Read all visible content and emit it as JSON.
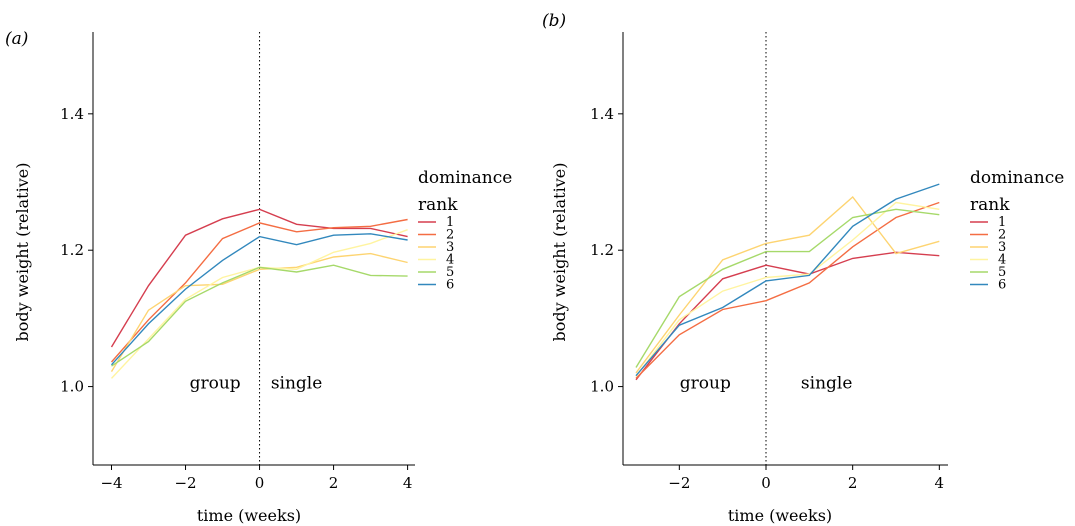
{
  "chart_data": [
    {
      "type": "line",
      "panel_label": "(a)",
      "xlabel": "time (weeks)",
      "ylabel": "body weight (relative)",
      "xlim": [
        -4.5,
        4.2
      ],
      "ylim": [
        0.885,
        1.52
      ],
      "xticks": [
        -4,
        -2,
        0,
        2,
        4
      ],
      "xtick_labels": [
        "−4",
        "−2",
        "0",
        "2",
        "4"
      ],
      "yticks": [
        1.0,
        1.2,
        1.4
      ],
      "ytick_labels": [
        "1.0",
        "1.2",
        "1.4"
      ],
      "divider_x": 0,
      "annotations": [
        {
          "text": "group",
          "x": -1.2,
          "y": 0.997
        },
        {
          "text": "single",
          "x": 1.0,
          "y": 0.997
        }
      ],
      "legend": {
        "title_line1": "dominance",
        "title_line2": "rank",
        "position": "right"
      },
      "x": [
        -4,
        -3,
        -2,
        -1,
        0,
        1,
        2,
        3,
        4
      ],
      "series": [
        {
          "name": "1",
          "color": "#d53e4f",
          "values": [
            1.058,
            1.148,
            1.222,
            1.246,
            1.26,
            1.238,
            1.232,
            1.232,
            1.22
          ]
        },
        {
          "name": "2",
          "color": "#f46d43",
          "values": [
            1.036,
            1.098,
            1.152,
            1.217,
            1.24,
            1.227,
            1.233,
            1.235,
            1.245
          ]
        },
        {
          "name": "3",
          "color": "#fdd471",
          "values": [
            1.022,
            1.112,
            1.148,
            1.15,
            1.172,
            1.175,
            1.19,
            1.195,
            1.182
          ]
        },
        {
          "name": "4",
          "color": "#fff4a0",
          "values": [
            1.012,
            1.07,
            1.128,
            1.16,
            1.175,
            1.172,
            1.197,
            1.21,
            1.23
          ]
        },
        {
          "name": "5",
          "color": "#a6d96a",
          "values": [
            1.03,
            1.066,
            1.125,
            1.152,
            1.175,
            1.168,
            1.178,
            1.163,
            1.162
          ]
        },
        {
          "name": "6",
          "color": "#3288bd",
          "values": [
            1.032,
            1.092,
            1.143,
            1.185,
            1.22,
            1.208,
            1.222,
            1.224,
            1.215
          ]
        }
      ]
    },
    {
      "type": "line",
      "panel_label": "(b)",
      "xlabel": "time (weeks)",
      "ylabel": "body weight (relative)",
      "xlim": [
        -3.3,
        4.2
      ],
      "ylim": [
        0.885,
        1.52
      ],
      "xticks": [
        -2,
        0,
        2,
        4
      ],
      "xtick_labels": [
        "−2",
        "0",
        "2",
        "4"
      ],
      "yticks": [
        1.0,
        1.2,
        1.4
      ],
      "ytick_labels": [
        "1.0",
        "1.2",
        "1.4"
      ],
      "divider_x": 0,
      "annotations": [
        {
          "text": "group",
          "x": -1.4,
          "y": 0.997
        },
        {
          "text": "single",
          "x": 1.4,
          "y": 0.997
        }
      ],
      "legend": {
        "title_line1": "dominance",
        "title_line2": "rank",
        "position": "right"
      },
      "x": [
        -3,
        -2,
        -1,
        0,
        1,
        2,
        3,
        4
      ],
      "series": [
        {
          "name": "1",
          "color": "#d53e4f",
          "values": [
            1.01,
            1.092,
            1.158,
            1.178,
            1.165,
            1.188,
            1.197,
            1.192
          ]
        },
        {
          "name": "2",
          "color": "#f46d43",
          "values": [
            1.012,
            1.076,
            1.113,
            1.126,
            1.152,
            1.205,
            1.248,
            1.27
          ]
        },
        {
          "name": "3",
          "color": "#fdd471",
          "values": [
            1.02,
            1.105,
            1.186,
            1.21,
            1.222,
            1.278,
            1.195,
            1.213
          ]
        },
        {
          "name": "4",
          "color": "#fff4a0",
          "values": [
            1.015,
            1.098,
            1.14,
            1.16,
            1.165,
            1.215,
            1.27,
            1.26
          ]
        },
        {
          "name": "5",
          "color": "#a6d96a",
          "values": [
            1.028,
            1.132,
            1.172,
            1.198,
            1.198,
            1.248,
            1.26,
            1.252
          ]
        },
        {
          "name": "6",
          "color": "#3288bd",
          "values": [
            1.016,
            1.09,
            1.116,
            1.155,
            1.163,
            1.235,
            1.275,
            1.297
          ]
        }
      ]
    }
  ]
}
